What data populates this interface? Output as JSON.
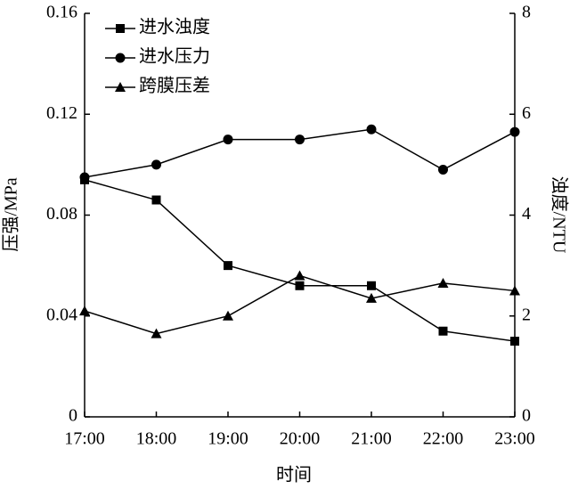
{
  "chart_data": {
    "type": "line",
    "x_label": "时间",
    "y_label": "压强/MPa",
    "y2_label": "浊度/NTU",
    "categories": [
      "17:00",
      "18:00",
      "19:00",
      "20:00",
      "21:00",
      "22:00",
      "23:00"
    ],
    "series": [
      {
        "name": "进水浊度",
        "color": "#000000",
        "marker": "square",
        "axis": "y2",
        "values": [
          4.7,
          4.3,
          3.0,
          2.6,
          2.6,
          1.7,
          1.5
        ]
      },
      {
        "name": "进水压力",
        "color": "#000000",
        "marker": "circle",
        "values": [
          0.095,
          0.1,
          0.11,
          0.11,
          0.114,
          0.098,
          0.113
        ]
      },
      {
        "name": "跨膜压差",
        "color": "#000000",
        "marker": "triangle",
        "values": [
          0.042,
          0.033,
          0.04,
          0.056,
          0.047,
          0.053,
          0.05
        ]
      }
    ],
    "ylim": [
      0,
      0.16
    ],
    "yticks": [
      0,
      0.04,
      0.08,
      0.12,
      0.16
    ],
    "y2lim": [
      0,
      8
    ],
    "y2ticks": [
      0,
      2,
      4,
      6,
      8
    ],
    "legend": "upper left"
  }
}
